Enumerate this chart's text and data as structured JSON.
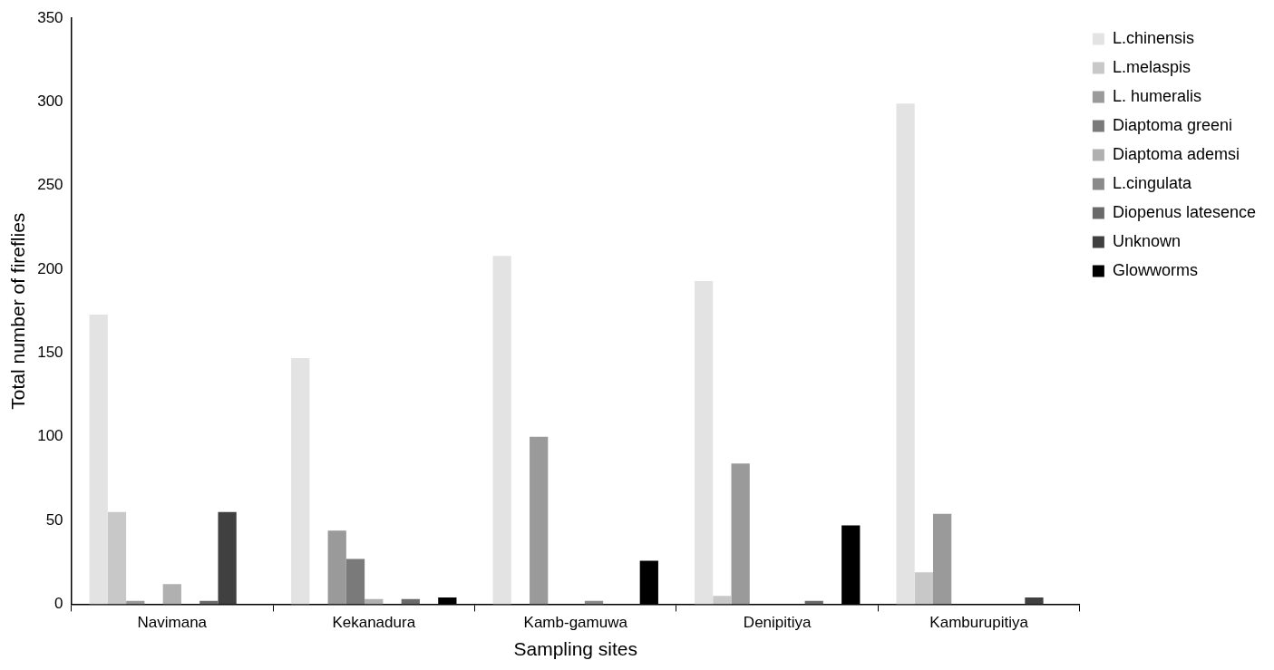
{
  "chart_data": {
    "type": "bar",
    "xlabel": "Sampling sites",
    "ylabel": "Total number of fireflies",
    "categories": [
      "Navimana",
      "Kekanadura",
      "Kamb-gamuwa",
      "Denipitiya",
      "Kamburupitiya"
    ],
    "series": [
      {
        "name": "L.chinensis",
        "color": "#e3e3e3",
        "values": [
          173,
          147,
          208,
          193,
          299
        ]
      },
      {
        "name": "L.melaspis",
        "color": "#c8c8c8",
        "values": [
          55,
          0,
          0,
          5,
          19
        ]
      },
      {
        "name": "L. humeralis",
        "color": "#9a9a9a",
        "values": [
          2,
          44,
          100,
          84,
          54
        ]
      },
      {
        "name": "Diaptoma greeni",
        "color": "#7a7a7a",
        "values": [
          0,
          27,
          0,
          0,
          0
        ]
      },
      {
        "name": "Diaptoma ademsi",
        "color": "#b0b0b0",
        "values": [
          12,
          3,
          0,
          0,
          0
        ]
      },
      {
        "name": "L.cingulata",
        "color": "#8a8a8a",
        "values": [
          0,
          0,
          2,
          0,
          0
        ]
      },
      {
        "name": "Diopenus latesence",
        "color": "#6a6a6a",
        "values": [
          2,
          3,
          0,
          2,
          0
        ]
      },
      {
        "name": "Unknown",
        "color": "#404040",
        "values": [
          55,
          0,
          0,
          0,
          4
        ]
      },
      {
        "name": "Glowworms",
        "color": "#000000",
        "values": [
          0,
          4,
          26,
          47,
          0
        ]
      }
    ],
    "ylim": [
      0,
      350
    ],
    "yticks": [
      0,
      50,
      100,
      150,
      200,
      250,
      300,
      350
    ],
    "grid": false,
    "legend": "top right"
  }
}
